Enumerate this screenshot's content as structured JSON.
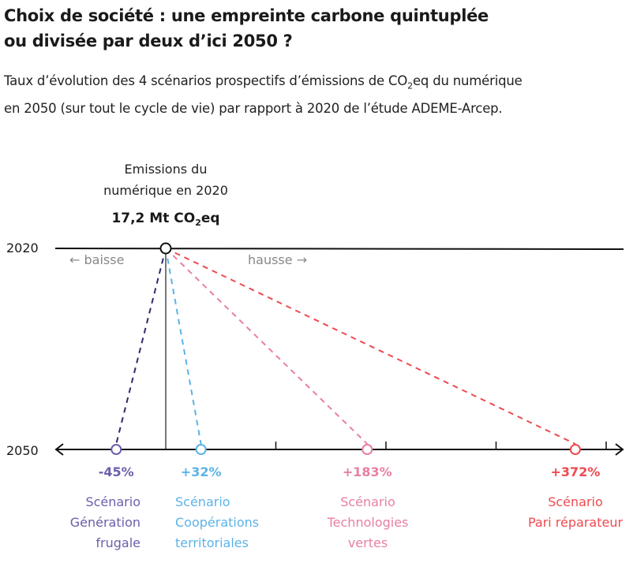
{
  "title_line1": "Choix de société : une empreinte carbone quintuplée",
  "title_line2": "ou divisée par deux d’ici 2050 ?",
  "subtitle_a": "Taux d’évolution des 4 scénarios prospectifs d’émissions de CO",
  "subtitle_sub": "2",
  "subtitle_b": "eq du numérique",
  "subtitle_line2": "en 2050 (sur tout le cycle de vie) par rapport à 2020 de l’étude ADEME-Arcep.",
  "chart_data": {
    "type": "slope",
    "y_labels": {
      "top": "2020",
      "bottom": "2050"
    },
    "baseline_label_line1": "Emissions du",
    "baseline_label_line2": "numérique en 2020",
    "baseline_value_a": "17,2 Mt CO",
    "baseline_value_sub": "2",
    "baseline_value_b": "eq",
    "direction_down": "← baisse",
    "direction_up": "hausse →",
    "xlim": [
      -100,
      400
    ],
    "ticks": [
      100,
      200,
      300,
      400
    ],
    "series": [
      {
        "value": -45,
        "label": "-45%",
        "name_lines": [
          "Scénario",
          "Génération",
          "frugale"
        ],
        "color": "#6a5fac",
        "line_color": "#2e2a6e",
        "align": "end"
      },
      {
        "value": 32,
        "label": "+32%",
        "name_lines": [
          "Scénario",
          "Coopérations",
          "territoriales"
        ],
        "color": "#5cb3e6",
        "line_color": "#5cb3e6",
        "align": "start"
      },
      {
        "value": 183,
        "label": "+183%",
        "name_lines": [
          "Scénario",
          "Technologies",
          "vertes"
        ],
        "color": "#e77fa4",
        "line_color": "#e77fa4",
        "align": "middle"
      },
      {
        "value": 372,
        "label": "+372%",
        "name_lines": [
          "Scénario",
          "Pari réparateur"
        ],
        "color": "#ee4a50",
        "line_color": "#ee4a50",
        "align": "middle"
      }
    ]
  }
}
